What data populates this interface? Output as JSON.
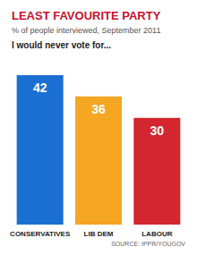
{
  "chart_data": {
    "type": "bar",
    "title": "LEAST FAVOURITE PARTY",
    "subtitle": "% of people interviewed, September 2011",
    "ylabel": "I would never vote for...",
    "source": "SOURCE: IPPR/YOUGOV",
    "categories": [
      "CONSERVATIVES",
      "LIB DEM",
      "LABOUR"
    ],
    "values": [
      42,
      36,
      30
    ],
    "colors": [
      "#1b6fd2",
      "#f5a623",
      "#d3262e"
    ],
    "ylim": [
      0,
      42
    ],
    "grid": false,
    "data_labels": true,
    "tick_labels": "x"
  }
}
